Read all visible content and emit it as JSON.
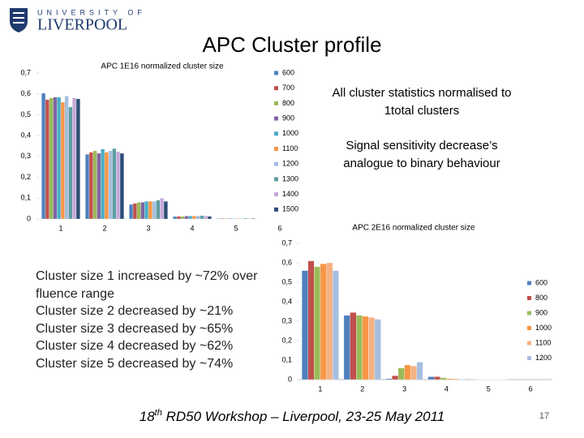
{
  "logo": {
    "line1": "UNIVERSITY OF",
    "line2": "LIVERPOOL"
  },
  "title": "APC Cluster profile",
  "notes": [
    "All cluster statistics normalised to 1total clusters",
    "Signal sensitivity decrease’s analogue to binary behaviour"
  ],
  "bullets": [
    "Cluster size 1 increased by ~72% over fluence range",
    "Cluster size 2 decreased by ~21%",
    "Cluster size 3 decreased by ~65%",
    "Cluster size 4 decreased by ~62%",
    "Cluster size 5 decreased by ~74%"
  ],
  "footer": {
    "number": "18",
    "suffix": "th",
    "text": " RD50 Workshop – Liverpool, 23-25 May 2011"
  },
  "page_number": "17",
  "chart_data": [
    {
      "type": "bar",
      "title": "APC 1E16 normalized cluster size",
      "categories": [
        "1",
        "2",
        "3",
        "4",
        "5",
        "6"
      ],
      "ylim": [
        0,
        0.7
      ],
      "yticks": [
        0,
        {
          "value": 0.1,
          "label": "0,1"
        },
        {
          "value": 0.2,
          "label": "0,2"
        },
        {
          "value": 0.3,
          "label": "0,3"
        },
        {
          "value": 0.4,
          "label": "0,4"
        },
        {
          "value": 0.5,
          "label": "0,5"
        },
        {
          "value": 0.6,
          "label": "0,6"
        },
        {
          "value": 0.7,
          "label": "0,7"
        }
      ],
      "series": [
        {
          "name": "600",
          "color": "#4f81bd",
          "values": [
            0.603,
            0.31,
            0.07,
            0.012,
            0.003,
            0
          ]
        },
        {
          "name": "700",
          "color": "#c0504d",
          "values": [
            0.572,
            0.32,
            0.075,
            0.013,
            0.003,
            0
          ]
        },
        {
          "name": "800",
          "color": "#9bbb59",
          "values": [
            0.58,
            0.327,
            0.08,
            0.013,
            0.003,
            0
          ]
        },
        {
          "name": "900",
          "color": "#8064a2",
          "values": [
            0.584,
            0.315,
            0.08,
            0.014,
            0.003,
            0
          ]
        },
        {
          "name": "1000",
          "color": "#4bacc6",
          "values": [
            0.584,
            0.335,
            0.085,
            0.015,
            0.003,
            0
          ]
        },
        {
          "name": "1100",
          "color": "#f79646",
          "values": [
            0.56,
            0.32,
            0.085,
            0.014,
            0.003,
            0
          ]
        },
        {
          "name": "1200",
          "color": "#a6bfe0",
          "values": [
            0.59,
            0.327,
            0.085,
            0.015,
            0.003,
            0
          ]
        },
        {
          "name": "1300",
          "color": "#5f9ea0",
          "values": [
            0.537,
            0.338,
            0.09,
            0.016,
            0.004,
            0
          ]
        },
        {
          "name": "1400",
          "color": "#c5a8d9",
          "values": [
            0.58,
            0.323,
            0.1,
            0.015,
            0.003,
            0
          ]
        },
        {
          "name": "1500",
          "color": "#2c4d75",
          "values": [
            0.576,
            0.315,
            0.085,
            0.013,
            0.003,
            0
          ]
        }
      ]
    },
    {
      "type": "bar",
      "title": "APC 2E16 normalized cluster size",
      "categories": [
        "1",
        "2",
        "3",
        "4",
        "5",
        "6"
      ],
      "ylim": [
        0,
        0.7
      ],
      "yticks": [
        0,
        {
          "value": 0.1,
          "label": "0,1"
        },
        {
          "value": 0.2,
          "label": "0,2"
        },
        {
          "value": 0.3,
          "label": "0,3"
        },
        {
          "value": 0.4,
          "label": "0,4"
        },
        {
          "value": 0.5,
          "label": "0,5"
        },
        {
          "value": 0.6,
          "label": "0,6"
        },
        {
          "value": 0.7,
          "label": "0,7"
        }
      ],
      "series": [
        {
          "name": "600",
          "color": "#4f81bd",
          "values": [
            0.56,
            0.33,
            0.005,
            0.015,
            0.002,
            0
          ]
        },
        {
          "name": "800",
          "color": "#c0504d",
          "values": [
            0.61,
            0.345,
            0.02,
            0.015,
            0.001,
            0
          ]
        },
        {
          "name": "900",
          "color": "#9bbb59",
          "values": [
            0.58,
            0.33,
            0.06,
            0.01,
            0.001,
            0
          ]
        },
        {
          "name": "1000",
          "color": "#f79646",
          "values": [
            0.595,
            0.325,
            0.075,
            0.005,
            0.001,
            0
          ]
        },
        {
          "name": "1100",
          "color": "#f4b183",
          "values": [
            0.6,
            0.32,
            0.07,
            0.005,
            0.001,
            0
          ]
        },
        {
          "name": "1200",
          "color": "#a6bfe0",
          "values": [
            0.56,
            0.31,
            0.09,
            0.003,
            0.001,
            0
          ]
        }
      ]
    }
  ]
}
